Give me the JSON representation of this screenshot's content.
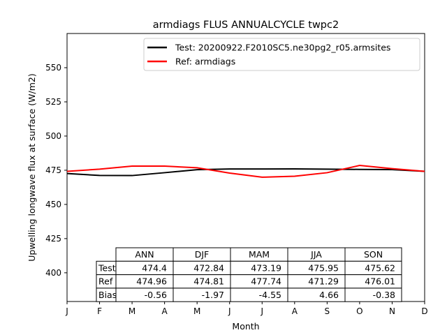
{
  "chart_data": {
    "type": "line",
    "title": "armdiags FLUS ANNUALCYCLE twpc2",
    "xlabel": "Month",
    "ylabel": "Upwelling longwave flux at surface (W/m2)",
    "x_ticks": [
      "J",
      "F",
      "M",
      "A",
      "M",
      "J",
      "J",
      "A",
      "S",
      "O",
      "N",
      "D"
    ],
    "y_ticks": [
      400,
      425,
      450,
      475,
      500,
      525,
      550
    ],
    "ylim": [
      379,
      575
    ],
    "xlim": [
      1,
      12
    ],
    "legend_position": "top-right",
    "grid": false,
    "series": [
      {
        "name": "Test: 20200922.F2010SC5.ne30pg2_r05.armsites",
        "color": "#000000",
        "x": [
          1,
          2,
          3,
          4,
          5,
          6,
          7,
          8,
          9,
          10,
          11,
          12
        ],
        "values": [
          472.6,
          471.2,
          471.1,
          473.2,
          475.4,
          475.9,
          475.9,
          476.0,
          475.8,
          475.6,
          475.5,
          474.2
        ]
      },
      {
        "name": "Ref: armdiags",
        "color": "#ff0000",
        "x": [
          1,
          2,
          3,
          4,
          5,
          6,
          7,
          8,
          9,
          10,
          11,
          12
        ],
        "values": [
          474.2,
          475.8,
          478.0,
          478.0,
          476.8,
          472.9,
          469.9,
          470.6,
          473.2,
          478.5,
          476.2,
          474.2
        ]
      }
    ],
    "table": {
      "columns": [
        "ANN",
        "DJF",
        "MAM",
        "JJA",
        "SON"
      ],
      "rows": [
        {
          "label": "Test",
          "values": [
            "474.4",
            "472.84",
            "473.19",
            "475.95",
            "475.62"
          ]
        },
        {
          "label": "Ref",
          "values": [
            "474.96",
            "474.81",
            "477.74",
            "471.29",
            "476.01"
          ]
        },
        {
          "label": "Bias",
          "values": [
            "-0.56",
            "-1.97",
            "-4.55",
            "4.66",
            "-0.38"
          ]
        }
      ]
    }
  }
}
